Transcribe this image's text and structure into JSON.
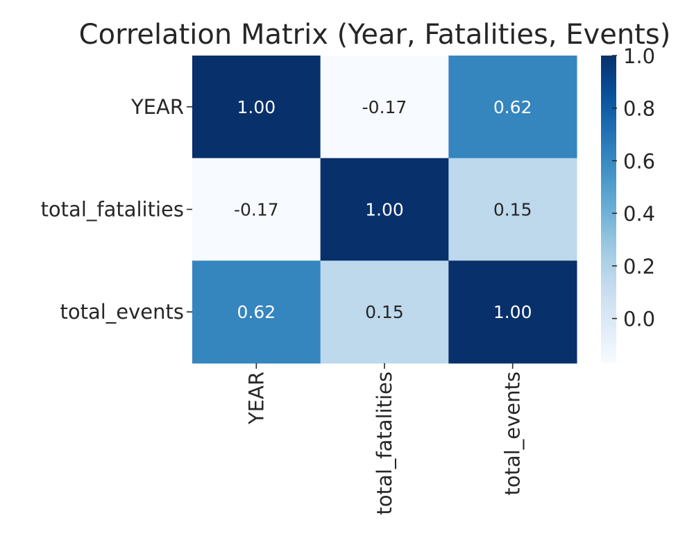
{
  "chart_data": {
    "type": "heatmap",
    "title": "Correlation Matrix (Year, Fatalities, Events)",
    "xlabel": "",
    "ylabel": "",
    "row_labels": [
      "YEAR",
      "total_fatalities",
      "total_events"
    ],
    "col_labels": [
      "YEAR",
      "total_fatalities",
      "total_events"
    ],
    "values": [
      [
        1.0,
        -0.17,
        0.62
      ],
      [
        -0.17,
        1.0,
        0.15
      ],
      [
        0.62,
        0.15,
        1.0
      ]
    ],
    "value_format": "2 decimals",
    "colormap": "Blues",
    "vmin": -0.17,
    "vmax": 1.0,
    "colorbar_ticks": [
      "0.0",
      "0.2",
      "0.4",
      "0.6",
      "0.8",
      "1.0"
    ],
    "colorbar_tick_values": [
      0.0,
      0.2,
      0.4,
      0.6,
      0.8,
      1.0
    ],
    "grid": false,
    "legend": "colorbar-right"
  }
}
